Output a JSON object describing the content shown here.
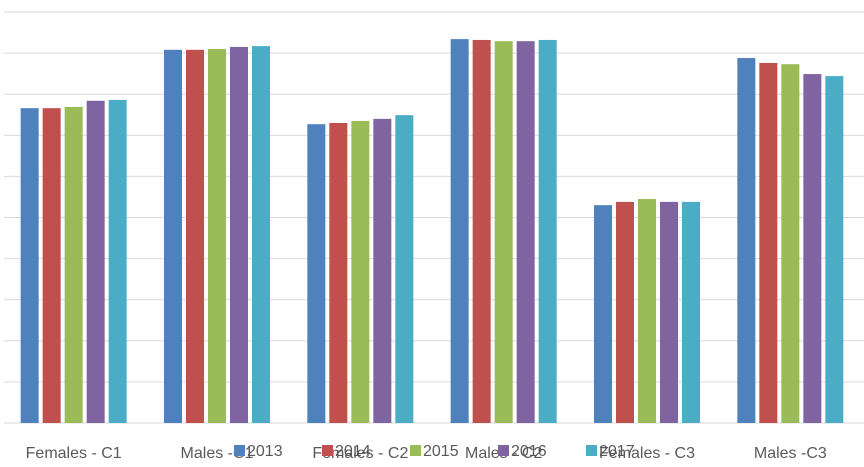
{
  "chart_data": {
    "type": "bar",
    "categories": [
      "Females - C1",
      "Males -C1",
      "Females - C2",
      "Males - C2",
      "Females - C3",
      "Males -C3"
    ],
    "series": [
      {
        "name": "2013",
        "color": "#4f81bd",
        "values": [
          7.66,
          9.08,
          7.27,
          9.34,
          5.3,
          8.88
        ]
      },
      {
        "name": "2014",
        "color": "#c0504d",
        "values": [
          7.66,
          9.08,
          7.3,
          9.32,
          5.38,
          8.76
        ]
      },
      {
        "name": "2015",
        "color": "#9bbb59",
        "values": [
          7.69,
          9.1,
          7.35,
          9.29,
          5.45,
          8.73
        ]
      },
      {
        "name": "2016",
        "color": "#8064a2",
        "values": [
          7.84,
          9.15,
          7.4,
          9.29,
          5.38,
          8.49
        ]
      },
      {
        "name": "2017",
        "color": "#4bacc6",
        "values": [
          7.86,
          9.17,
          7.49,
          9.32,
          5.38,
          8.44
        ]
      }
    ],
    "ylim": [
      0,
      10
    ],
    "yticks": [
      0,
      1,
      2,
      3,
      4,
      5,
      6,
      7,
      8,
      9,
      10
    ],
    "grid": true,
    "legend": "bottom"
  }
}
